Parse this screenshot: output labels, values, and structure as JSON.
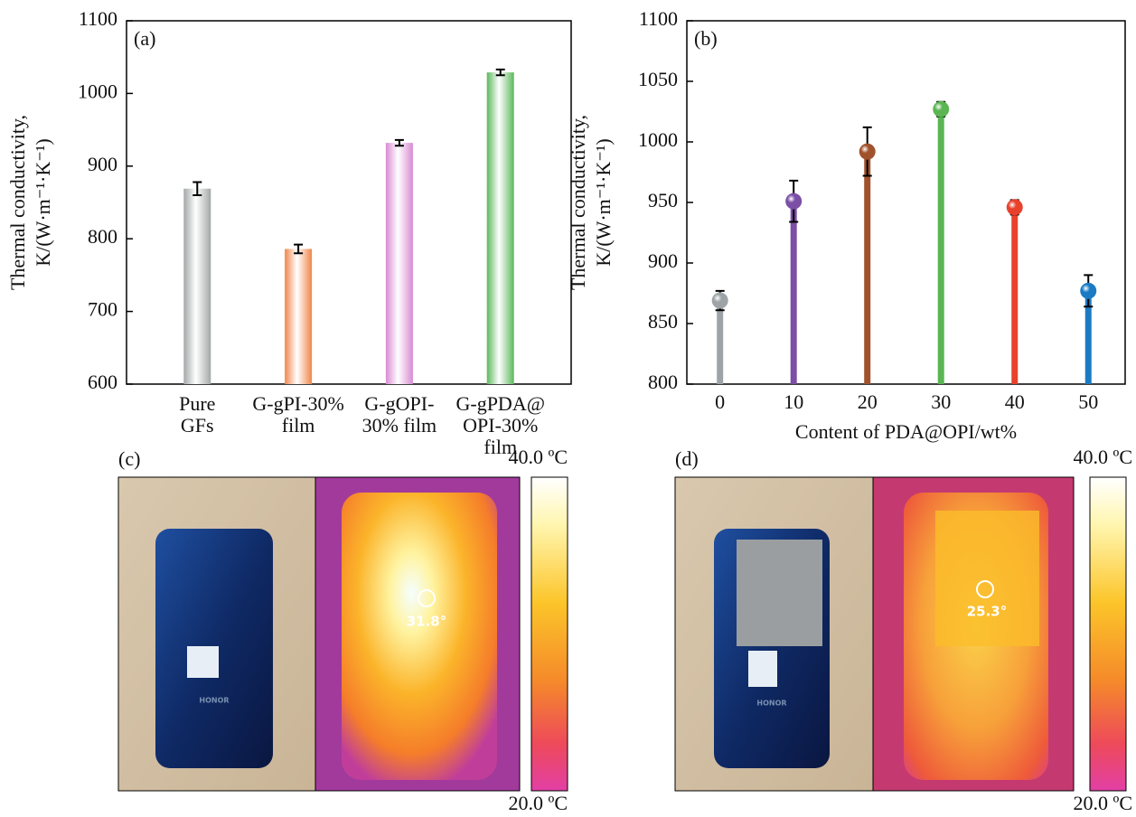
{
  "chart_data": [
    {
      "type": "bar",
      "panel": "(a)",
      "ylabel": [
        "Thermal conductivity,",
        "K/(W·m⁻¹·K⁻¹)"
      ],
      "categories": [
        [
          "Pure",
          "GFs"
        ],
        [
          "G-gPI-30%",
          "film"
        ],
        [
          "G-gOPI-",
          "30% film"
        ],
        [
          "G-gPDA@",
          "OPI-30%",
          "film"
        ]
      ],
      "values": [
        869,
        786,
        932,
        1029
      ],
      "errors": [
        9,
        6,
        4,
        4
      ],
      "colors": [
        "#a3a7a7",
        "#f0864a",
        "#d98ad2",
        "#5cb85c"
      ],
      "ylim": [
        600,
        1100
      ],
      "yticks": [
        600,
        700,
        800,
        900,
        1000,
        1100
      ]
    },
    {
      "type": "lollipop",
      "panel": "(b)",
      "ylabel": [
        "Thermal conductivity,",
        "K/(W·m⁻¹·K⁻¹)"
      ],
      "xlabel": "Content of PDA@OPI/wt%",
      "x": [
        0,
        10,
        20,
        30,
        40,
        50
      ],
      "values": [
        869,
        951,
        992,
        1027,
        946,
        877
      ],
      "errors": [
        8,
        17,
        20,
        6,
        6,
        13
      ],
      "colors": [
        "#9da3a6",
        "#7b4fa6",
        "#a0522d",
        "#5ab552",
        "#e8412c",
        "#1a7bc4"
      ],
      "xlim": [
        -4.5,
        55
      ],
      "xticks": [
        0,
        10,
        20,
        30,
        40,
        50
      ],
      "ylim": [
        800,
        1100
      ],
      "yticks": [
        800,
        850,
        900,
        950,
        1000,
        1050,
        1100
      ]
    }
  ],
  "panels": [
    {
      "label": "(c)",
      "reading": "31.8°",
      "scale_max": "40.0 ºC",
      "scale_min": "20.0 ºC",
      "brand": "HONOR"
    },
    {
      "label": "(d)",
      "reading": "25.3°",
      "scale_max": "40.0 ºC",
      "scale_min": "20.0 ºC",
      "brand": "HONOR"
    }
  ]
}
